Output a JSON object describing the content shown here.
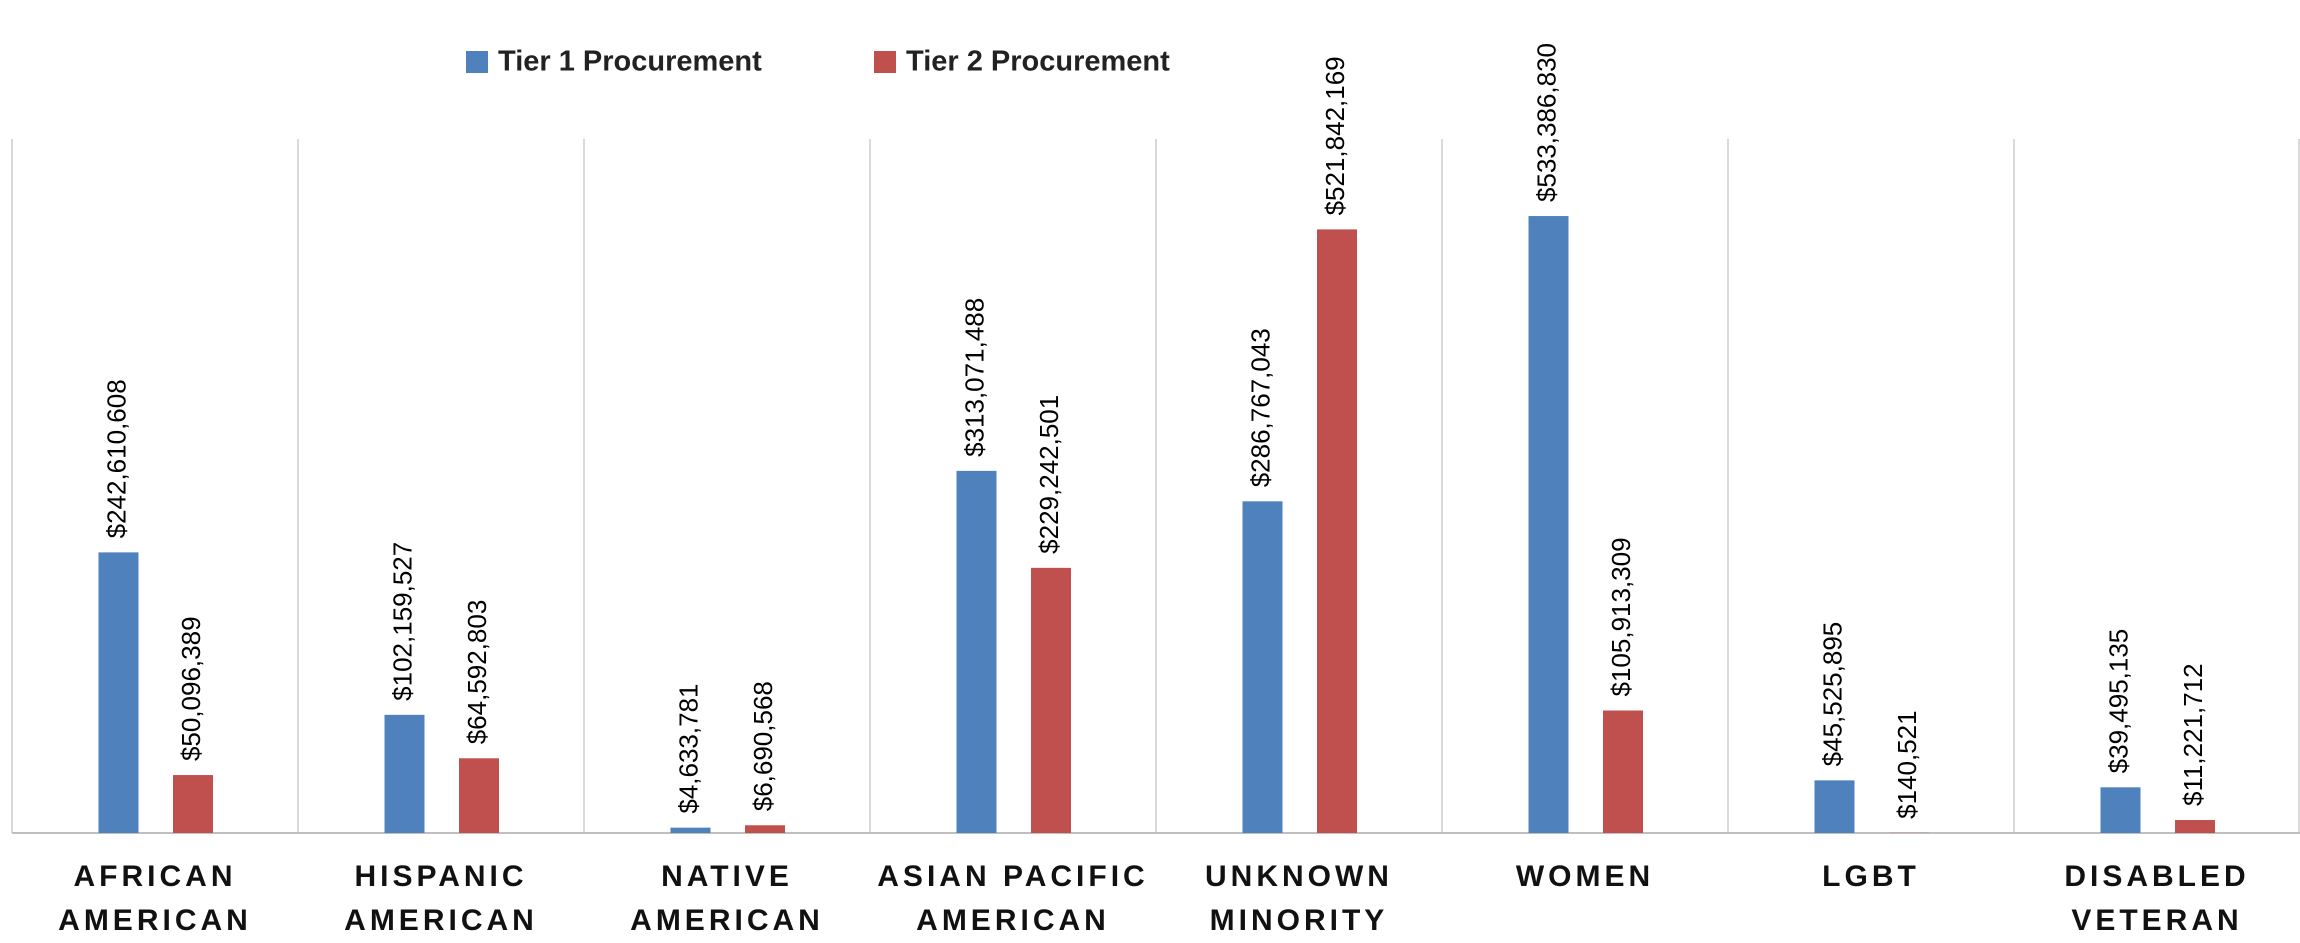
{
  "chart_data": {
    "type": "bar",
    "categories": [
      "AFRICAN\nAMERICAN",
      "HISPANIC\nAMERICAN",
      "NATIVE\nAMERICAN",
      "ASIAN PACIFIC\nAMERICAN",
      "UNKNOWN\nMINORITY",
      "WOMEN",
      "LGBT",
      "DISABLED\nVETERAN"
    ],
    "series": [
      {
        "name": "Tier 1 Procurement",
        "color": "#4f81bd",
        "values": [
          242610608,
          102159527,
          4633781,
          313071488,
          286767043,
          533386830,
          45525895,
          39495135
        ],
        "value_labels": [
          "$242,610,608",
          "$102,159,527",
          "$4,633,781",
          "$313,071,488",
          "$286,767,043",
          "$533,386,830",
          "$45,525,895",
          "$39,495,135"
        ]
      },
      {
        "name": "Tier 2 Procurement",
        "color": "#c0504d",
        "values": [
          50096389,
          64592803,
          6690568,
          229242501,
          521842169,
          105913309,
          140521,
          11221712
        ],
        "value_labels": [
          "$50,096,389",
          "$64,592,803",
          "$6,690,568",
          "$229,242,501",
          "$521,842,169",
          "$105,913,309",
          "$140,521",
          "$11,221,712"
        ]
      }
    ],
    "ylim": [
      0,
      600000000
    ],
    "legend": "top"
  }
}
